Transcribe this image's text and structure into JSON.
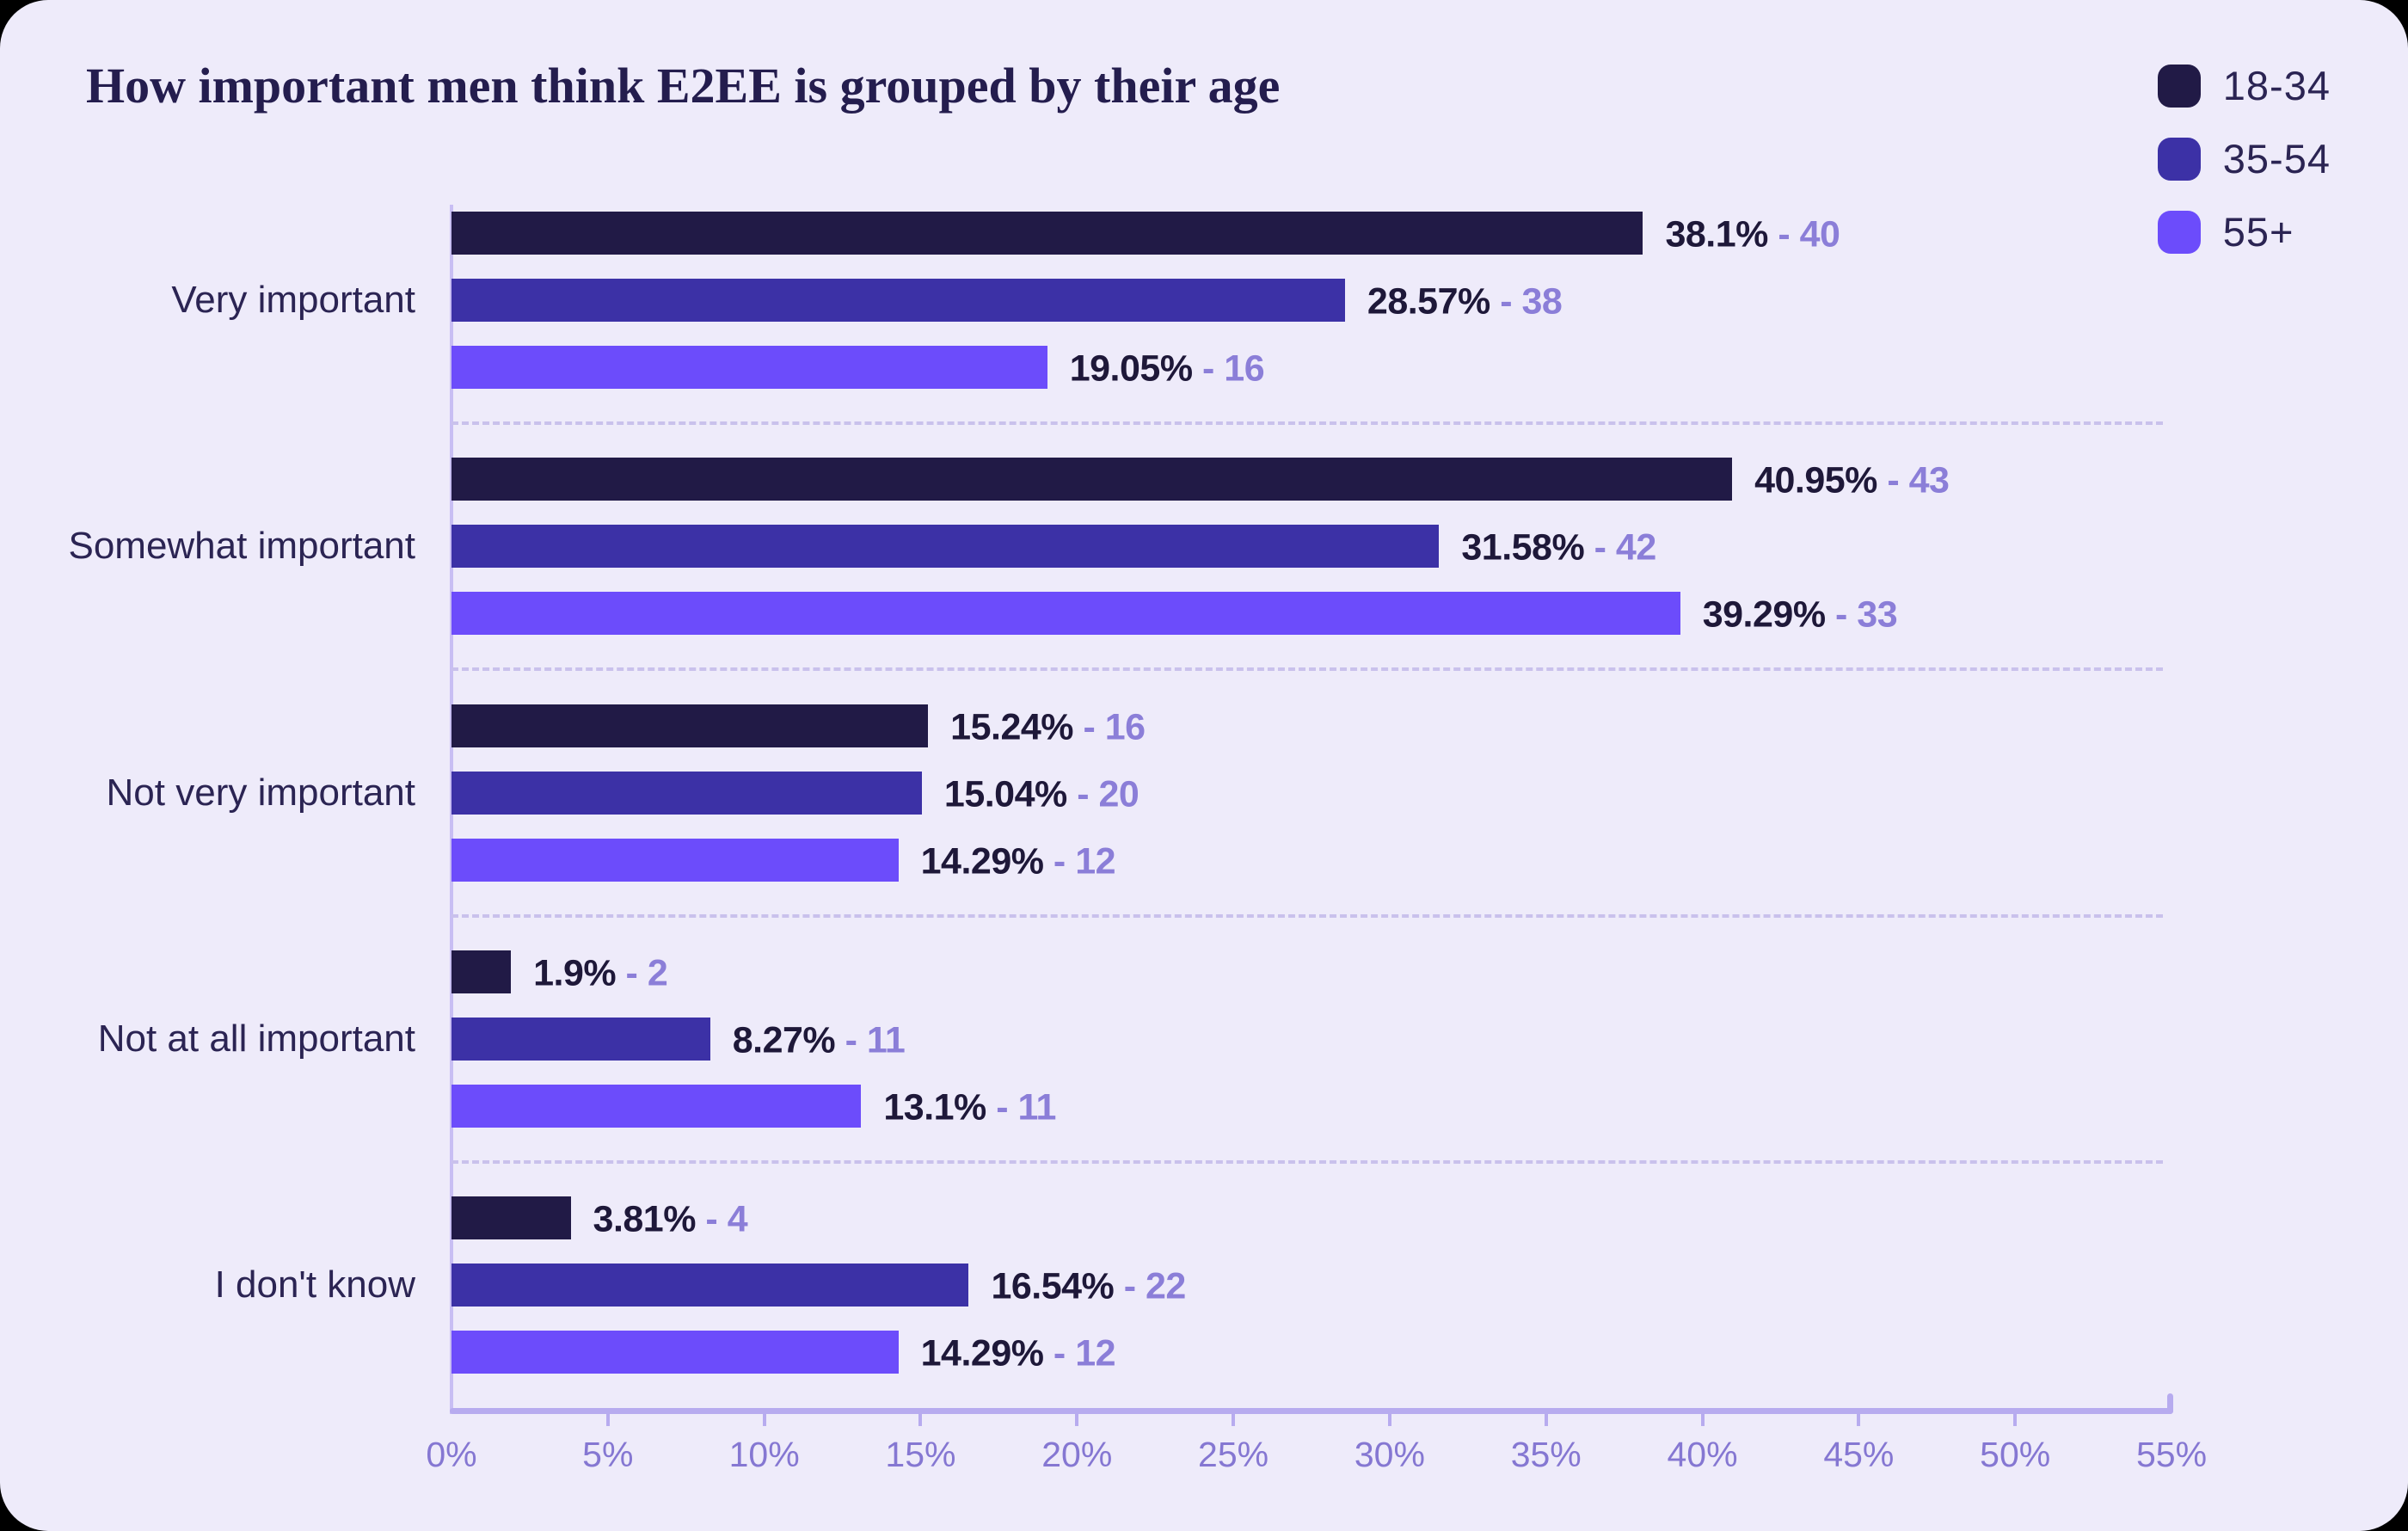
{
  "page": {
    "card_background": "#EEEBFA",
    "outside_background": "#000000"
  },
  "header": {
    "title": "How important men think E2EE is grouped by their age"
  },
  "legend": {
    "position": "top-right",
    "items": [
      {
        "label": "18-34",
        "color": "#211A46"
      },
      {
        "label": "35-54",
        "color": "#3C31A6"
      },
      {
        "label": "55+",
        "color": "#6C4CFB"
      }
    ]
  },
  "chart_data": {
    "type": "bar",
    "orientation": "horizontal",
    "title": "How important men think E2EE is grouped by their age",
    "categories": [
      "Very important",
      "Somewhat important",
      "Not very important",
      "Not at all important",
      "I don't know"
    ],
    "series": [
      {
        "name": "18-34",
        "color": "#211A46",
        "values": [
          38.1,
          40.95,
          15.24,
          1.9,
          3.81
        ],
        "value_labels": [
          "38.1%",
          "40.95%",
          "15.24%",
          "1.9%",
          "3.81%"
        ],
        "counts": [
          40,
          43,
          16,
          2,
          4
        ]
      },
      {
        "name": "35-54",
        "color": "#3C31A6",
        "values": [
          28.57,
          31.58,
          15.04,
          8.27,
          16.54
        ],
        "value_labels": [
          "28.57%",
          "31.58%",
          "15.04%",
          "8.27%",
          "16.54%"
        ],
        "counts": [
          38,
          42,
          20,
          11,
          22
        ]
      },
      {
        "name": "55+",
        "color": "#6C4CFB",
        "values": [
          19.05,
          39.29,
          14.29,
          13.1,
          14.29
        ],
        "value_labels": [
          "19.05%",
          "39.29%",
          "14.29%",
          "13.1%",
          "14.29%"
        ],
        "counts": [
          16,
          33,
          12,
          11,
          12
        ]
      }
    ],
    "value_label_separator": "-",
    "x_ticks": [
      "0%",
      "5%",
      "10%",
      "15%",
      "20%",
      "25%",
      "30%",
      "35%",
      "40%",
      "45%",
      "50%",
      "55%"
    ],
    "xlim": [
      0,
      55
    ],
    "grid": "dashed horizontal separators between category groups",
    "legend_position": "top-right",
    "colors": {
      "percent_label": "#1E1839",
      "count_label": "#8B7ED8",
      "axis_line": "#B7ABEF",
      "axis_tick_label": "#8577D2",
      "category_label": "#2B2453",
      "separator": "#C9C1EC"
    }
  }
}
